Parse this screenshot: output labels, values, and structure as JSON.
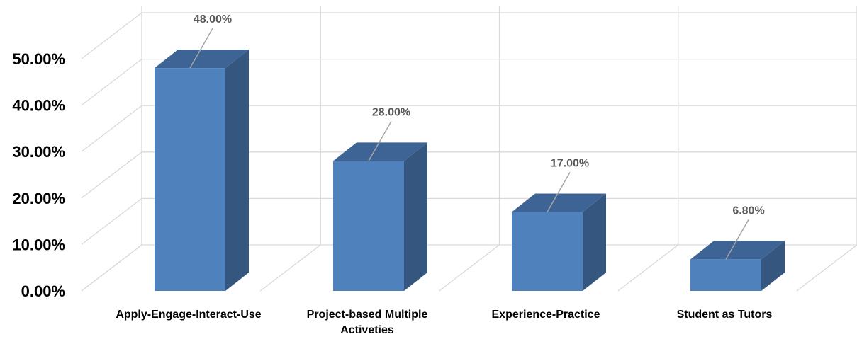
{
  "chart_data": {
    "type": "bar",
    "style": "3d-column",
    "title": "",
    "xlabel": "",
    "ylabel": "",
    "categories": [
      [
        "Apply-Engage-Interact-Use"
      ],
      [
        "Project-based Multiple",
        "Activeties"
      ],
      [
        "Experience-Practice"
      ],
      [
        "Student as Tutors"
      ]
    ],
    "values": [
      48.0,
      28.0,
      17.0,
      6.8
    ],
    "data_labels": [
      "48.00%",
      "28.00%",
      "17.00%",
      "6.80%"
    ],
    "yticks": [
      "0.00%",
      "10.00%",
      "20.00%",
      "30.00%",
      "40.00%",
      "50.00%"
    ],
    "ylim": [
      0,
      50
    ],
    "grid": true,
    "legend": "none",
    "colors": {
      "bar_front": "#4f81bd",
      "bar_side": "#34567f",
      "bar_top": "#3d6495",
      "grid": "#d9d9d9",
      "leader": "#a6a6a6"
    }
  }
}
